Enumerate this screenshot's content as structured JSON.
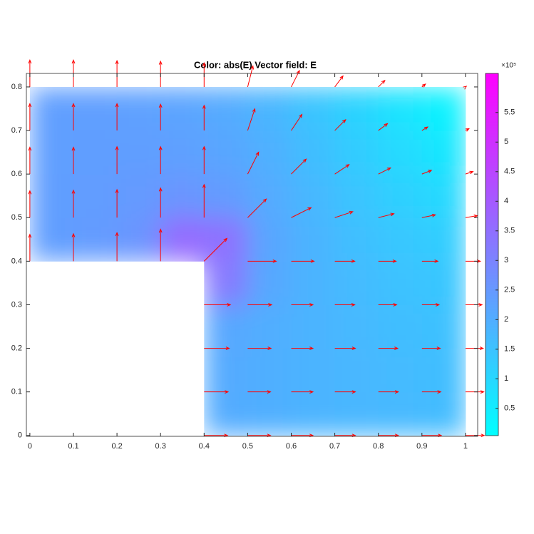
{
  "chart_data": {
    "type": "quiver",
    "title": "Color: abs(E)  Vector field: E",
    "x": [
      0,
      0.1,
      0.2,
      0.3,
      0.4,
      0.5,
      0.6,
      0.7,
      0.8,
      0.9,
      1
    ],
    "y": [
      0,
      0.1,
      0.2,
      0.3,
      0.4,
      0.5,
      0.6,
      0.7,
      0.8
    ],
    "values": [
      [
        null,
        null,
        null,
        null,
        2.05,
        2.0,
        1.9,
        1.8,
        1.75,
        1.7,
        1.65
      ],
      [
        null,
        null,
        null,
        null,
        2.1,
        2.0,
        1.9,
        1.8,
        1.75,
        1.65,
        1.6
      ],
      [
        null,
        null,
        null,
        null,
        2.2,
        2.05,
        1.9,
        1.8,
        1.7,
        1.6,
        1.55
      ],
      [
        null,
        null,
        null,
        null,
        2.3,
        2.1,
        1.9,
        1.75,
        1.6,
        1.5,
        1.45
      ],
      [
        2.35,
        2.4,
        2.5,
        2.8,
        6.1,
        2.5,
        2.0,
        1.75,
        1.55,
        1.4,
        1.3
      ],
      [
        2.35,
        2.4,
        2.45,
        2.6,
        2.9,
        2.3,
        1.95,
        1.65,
        1.4,
        1.2,
        1.05
      ],
      [
        2.35,
        2.35,
        2.4,
        2.4,
        2.4,
        2.15,
        1.85,
        1.5,
        1.2,
        0.9,
        0.7
      ],
      [
        2.35,
        2.35,
        2.35,
        2.3,
        2.2,
        2.0,
        1.7,
        1.35,
        1.0,
        0.6,
        0.35
      ],
      [
        2.35,
        2.35,
        2.3,
        2.25,
        2.1,
        1.9,
        1.6,
        1.2,
        0.8,
        0.4,
        0.1
      ]
    ],
    "u": [
      [
        null,
        null,
        null,
        null,
        2.05,
        2.0,
        1.9,
        1.8,
        1.75,
        1.7,
        1.65
      ],
      [
        null,
        null,
        null,
        null,
        2.1,
        2.0,
        1.9,
        1.8,
        1.75,
        1.65,
        1.6
      ],
      [
        null,
        null,
        null,
        null,
        2.2,
        2.05,
        1.9,
        1.8,
        1.7,
        1.6,
        1.55
      ],
      [
        null,
        null,
        null,
        null,
        2.3,
        2.1,
        1.9,
        1.75,
        1.6,
        1.5,
        1.45
      ],
      [
        0,
        0,
        0,
        0,
        2.0,
        2.5,
        2.0,
        1.75,
        1.55,
        1.4,
        1.3
      ],
      [
        0,
        0,
        0,
        0,
        0,
        1.63,
        1.74,
        1.57,
        1.36,
        1.18,
        1.04
      ],
      [
        0,
        0,
        0,
        0,
        0,
        0.96,
        1.31,
        1.25,
        1.07,
        0.84,
        0.66
      ],
      [
        0,
        0,
        0,
        0,
        0,
        0.63,
        0.94,
        0.95,
        0.8,
        0.51,
        0.31
      ],
      [
        0,
        0,
        0,
        0,
        0,
        0.46,
        0.72,
        0.72,
        0.57,
        0.31,
        0.08
      ]
    ],
    "v": [
      [
        null,
        null,
        null,
        null,
        0,
        0,
        0,
        0,
        0,
        0,
        0
      ],
      [
        null,
        null,
        null,
        null,
        0,
        0,
        0,
        0,
        0,
        0,
        0
      ],
      [
        null,
        null,
        null,
        null,
        0,
        0,
        0,
        0,
        0,
        0,
        0
      ],
      [
        null,
        null,
        null,
        null,
        0,
        0,
        0,
        0,
        0,
        0,
        0
      ],
      [
        2.35,
        2.4,
        2.5,
        2.8,
        2.0,
        0,
        0,
        0,
        0,
        0,
        0
      ],
      [
        2.35,
        2.4,
        2.45,
        2.6,
        2.9,
        1.63,
        0.87,
        0.52,
        0.34,
        0.24,
        0.17
      ],
      [
        2.35,
        2.35,
        2.4,
        2.4,
        2.4,
        1.92,
        1.31,
        0.83,
        0.54,
        0.33,
        0.22
      ],
      [
        2.35,
        2.35,
        2.35,
        2.3,
        2.2,
        1.9,
        1.41,
        0.95,
        0.6,
        0.31,
        0.16
      ],
      [
        2.35,
        2.35,
        2.3,
        2.25,
        2.1,
        1.84,
        1.43,
        0.96,
        0.57,
        0.25,
        0.06
      ]
    ],
    "arrow_color": "#ff0000",
    "xlim": [
      -0.008,
      1.028
    ],
    "ylim": [
      -0.002,
      0.831
    ],
    "xticks": [
      0,
      0.1,
      0.2,
      0.3,
      0.4,
      0.5,
      0.6,
      0.7,
      0.8,
      0.9,
      1
    ],
    "yticks": [
      0,
      0.1,
      0.2,
      0.3,
      0.4,
      0.5,
      0.6,
      0.7,
      0.8
    ],
    "colorbar": {
      "clim": [
        0.04,
        6.16
      ],
      "ticks": [
        0.5,
        1,
        1.5,
        2,
        2.5,
        3,
        3.5,
        4,
        4.5,
        5,
        5.5
      ],
      "multiplier": "×10⁵",
      "colors": [
        "#00ffff",
        "#ff00ff"
      ]
    }
  }
}
